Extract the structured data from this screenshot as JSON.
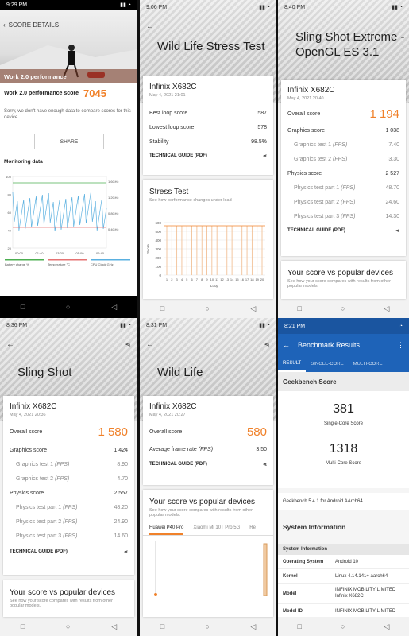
{
  "p1": {
    "time": "9:29 PM",
    "header": "SCORE DETAILS",
    "perf_label": "Work 2.0 performance",
    "score_label": "Work 2.0 performance score",
    "score": "7045",
    "sorry": "Sorry, we don't have enough data to compare scores for this device.",
    "share": "SHARE",
    "monitoring": "Monitoring data",
    "yticks": [
      "100",
      "80",
      "60",
      "40",
      "20"
    ],
    "ghz": [
      "1.6GHz",
      "1.2GHz",
      "0.8GHz",
      "0.4GHz"
    ],
    "xticks": [
      "00:00",
      "01:40",
      "03:20",
      "05:00",
      "06:40"
    ],
    "legend": [
      "Battery charge %",
      "Temperature °C",
      "CPU Clock GHz"
    ]
  },
  "p2": {
    "time": "9:06 PM",
    "title": "Wild Life Stress Test",
    "device": "Infinix X682C",
    "date": "May 4, 2021 21:01",
    "rows": [
      {
        "l": "Best loop score",
        "v": "587"
      },
      {
        "l": "Lowest loop score",
        "v": "578"
      },
      {
        "l": "Stability",
        "v": "98.5%"
      }
    ],
    "guide": "TECHNICAL GUIDE (PDF)",
    "stress": "Stress Test",
    "stress_note": "See how performance changes under load",
    "yticks": [
      "600",
      "500",
      "400",
      "300",
      "200",
      "100",
      "0"
    ],
    "xticks": [
      "1",
      "2",
      "3",
      "4",
      "5",
      "6",
      "7",
      "8",
      "9",
      "10",
      "11",
      "12",
      "13",
      "14",
      "15",
      "16",
      "17",
      "18",
      "19",
      "20"
    ],
    "ylabel": "Score",
    "xlabel": "Loop"
  },
  "p3": {
    "time": "8:40 PM",
    "title": "Sling Shot Extreme - OpenGL ES 3.1",
    "device": "Infinix X682C",
    "date": "May 4, 2021 20:40",
    "overall_l": "Overall score",
    "overall": "1 194",
    "g_l": "Graphics score",
    "g": "1 038",
    "gt1_l": "Graphics test 1",
    "gt1": "7.40",
    "gt2_l": "Graphics test 2",
    "gt2": "3.30",
    "ph_l": "Physics score",
    "ph": "2 527",
    "pt1_l": "Physics test part 1",
    "pt1": "48.70",
    "pt2_l": "Physics test part 2",
    "pt2": "24.60",
    "pt3_l": "Physics test part 3",
    "pt3": "14.30",
    "fps": "(FPS)",
    "guide": "TECHNICAL GUIDE (PDF)",
    "vs": "Your score vs popular devices",
    "vs_note": "See how your score compares with results from other popular models."
  },
  "p4": {
    "time": "8:36 PM",
    "title": "Sling Shot",
    "device": "Infinix X682C",
    "date": "May 4, 2021 20:36",
    "overall_l": "Overall score",
    "overall": "1 580",
    "g_l": "Graphics score",
    "g": "1 424",
    "gt1_l": "Graphics test 1",
    "gt1": "8.90",
    "gt2_l": "Graphics test 2",
    "gt2": "4.70",
    "ph_l": "Physics score",
    "ph": "2 557",
    "pt1_l": "Physics test part 1",
    "pt1": "48.20",
    "pt2_l": "Physics test part 2",
    "pt2": "24.90",
    "pt3_l": "Physics test part 3",
    "pt3": "14.60",
    "fps": "(FPS)",
    "guide": "TECHNICAL GUIDE (PDF)",
    "vs": "Your score vs popular devices",
    "vs_note": "See how your score compares with results from other popular models."
  },
  "p5": {
    "time": "8:31 PM",
    "title": "Wild Life",
    "device": "Infinix X682C",
    "date": "May 4, 2021 20:27",
    "overall_l": "Overall score",
    "overall": "580",
    "afr_l": "Average frame rate",
    "afr": "3.50",
    "fps": "(FPS)",
    "guide": "TECHNICAL GUIDE (PDF)",
    "vs": "Your score vs popular devices",
    "vs_note": "See how your score compares with results from other popular models.",
    "tabs": [
      "Huawei P40 Pro",
      "Xiaomi Mi 10T Pro 5G",
      "Re"
    ]
  },
  "p6": {
    "time": "8:21 PM",
    "title": "Benchmark Results",
    "tabs": [
      "RESULT",
      "SINGLE-CORE",
      "MULTI-CORE"
    ],
    "gb_score": "Geekbench Score",
    "single": "381",
    "single_l": "Single-Core Score",
    "multi": "1318",
    "multi_l": "Multi-Core Score",
    "version": "Geekbench 5.4.1 for Android AArch64",
    "sysinfo": "System Information",
    "sysinfo_hdr": "System Information",
    "rows": [
      {
        "l": "Operating System",
        "v": "Android 10"
      },
      {
        "l": "Kernel",
        "v": "Linux 4.14.141+ aarch64"
      },
      {
        "l": "Model",
        "v": "INFINIX MOBILITY LIMITED Infinix X682C"
      },
      {
        "l": "Model ID",
        "v": "INFINIX MOBILITY LIMITED"
      }
    ]
  },
  "colors": {
    "accent": "#f0812a",
    "blue": "#1e63b8"
  }
}
